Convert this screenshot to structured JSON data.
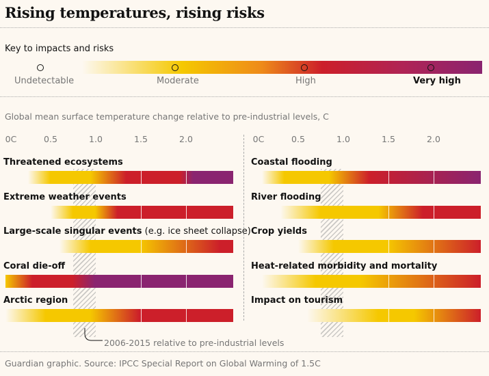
{
  "title": "Rising temperatures, rising risks",
  "key": {
    "heading": "Key to impacts and risks",
    "levels": [
      {
        "label": "Undetectable",
        "color": "#ffffff"
      },
      {
        "label": "Moderate",
        "color": "#f5c800"
      },
      {
        "label": "High",
        "color": "#cc1f2a"
      },
      {
        "label": "Very high",
        "color": "#8a2470"
      }
    ]
  },
  "axis_title": "Global mean surface temperature change relative to pre-industrial levels, C",
  "colors": {
    "undetectable": "#fdf8f1",
    "moderate": "#f5c800",
    "high": "#cc1f2a",
    "very_high": "#8a2470",
    "hatch": "#a0a0a0"
  },
  "annotation": "2006-2015 relative to pre-industrial levels",
  "source": "Guardian graphic. Source: IPCC Special Report on Global Warming of 1.5C",
  "chart_data": [
    {
      "type": "heatmap",
      "title": "",
      "xlabel": "Global mean surface temperature change relative to pre-industrial levels, C",
      "x_ticks": [
        "0C",
        "0.5",
        "1.0",
        "1.5",
        "2.0"
      ],
      "xlim": [
        0,
        2.55
      ],
      "shaded_band": {
        "from": 0.75,
        "to": 1.0,
        "label": "2006-2015 relative to pre-industrial levels"
      },
      "color_scale": [
        "Undetectable",
        "Moderate",
        "High",
        "Very high"
      ],
      "series": [
        {
          "name": "Threatened ecosystems",
          "sub": "",
          "stops": [
            [
              0.25,
              0
            ],
            [
              0.5,
              1
            ],
            [
              0.95,
              1
            ],
            [
              1.35,
              2
            ],
            [
              1.95,
              2
            ],
            [
              2.1,
              3
            ],
            [
              2.55,
              3
            ]
          ]
        },
        {
          "name": "Extreme weather events",
          "sub": "",
          "stops": [
            [
              0.5,
              0
            ],
            [
              0.75,
              1
            ],
            [
              1.0,
              1
            ],
            [
              1.25,
              2
            ],
            [
              2.55,
              2
            ]
          ]
        },
        {
          "name": "Large-scale singular events",
          "sub": "(e.g. ice sheet collapse)",
          "stops": [
            [
              0.6,
              0
            ],
            [
              0.95,
              1
            ],
            [
              1.5,
              1
            ],
            [
              2.4,
              2
            ],
            [
              2.55,
              2
            ]
          ]
        },
        {
          "name": "Coral die-off",
          "sub": "",
          "stops": [
            [
              0.0,
              1
            ],
            [
              0.3,
              2
            ],
            [
              0.75,
              2
            ],
            [
              1.0,
              3
            ],
            [
              2.55,
              3
            ]
          ]
        },
        {
          "name": "Arctic region",
          "sub": "",
          "stops": [
            [
              0.0,
              0
            ],
            [
              0.45,
              1
            ],
            [
              0.95,
              1
            ],
            [
              1.5,
              2
            ],
            [
              2.55,
              2
            ]
          ]
        }
      ]
    },
    {
      "type": "heatmap",
      "title": "",
      "xlabel": "Global mean surface temperature change relative to pre-industrial levels, C",
      "x_ticks": [
        "0C",
        "0.5",
        "1.0",
        "1.5",
        "2.0"
      ],
      "xlim": [
        0,
        2.55
      ],
      "shaded_band": {
        "from": 0.75,
        "to": 1.0,
        "label": "2006-2015 relative to pre-industrial levels"
      },
      "color_scale": [
        "Undetectable",
        "Moderate",
        "High",
        "Very high"
      ],
      "series": [
        {
          "name": "Coastal flooding",
          "sub": "",
          "stops": [
            [
              0.1,
              0
            ],
            [
              0.35,
              1
            ],
            [
              0.85,
              1
            ],
            [
              1.3,
              2
            ],
            [
              2.55,
              3
            ]
          ]
        },
        {
          "name": "River flooding",
          "sub": "",
          "stops": [
            [
              0.3,
              0
            ],
            [
              0.75,
              1
            ],
            [
              1.4,
              1
            ],
            [
              1.9,
              2
            ],
            [
              2.55,
              2
            ]
          ]
        },
        {
          "name": "Crop yields",
          "sub": "",
          "stops": [
            [
              0.5,
              0
            ],
            [
              0.9,
              1
            ],
            [
              1.5,
              1
            ],
            [
              2.55,
              2
            ]
          ]
        },
        {
          "name": "Heat-related morbidity and mortality",
          "sub": "",
          "stops": [
            [
              0.1,
              0
            ],
            [
              0.7,
              1
            ],
            [
              1.2,
              1
            ],
            [
              2.55,
              2
            ]
          ]
        },
        {
          "name": "Impact on tourism",
          "sub": "",
          "stops": [
            [
              0.6,
              0
            ],
            [
              1.4,
              1
            ],
            [
              1.8,
              1
            ],
            [
              2.55,
              2
            ]
          ]
        }
      ]
    }
  ]
}
